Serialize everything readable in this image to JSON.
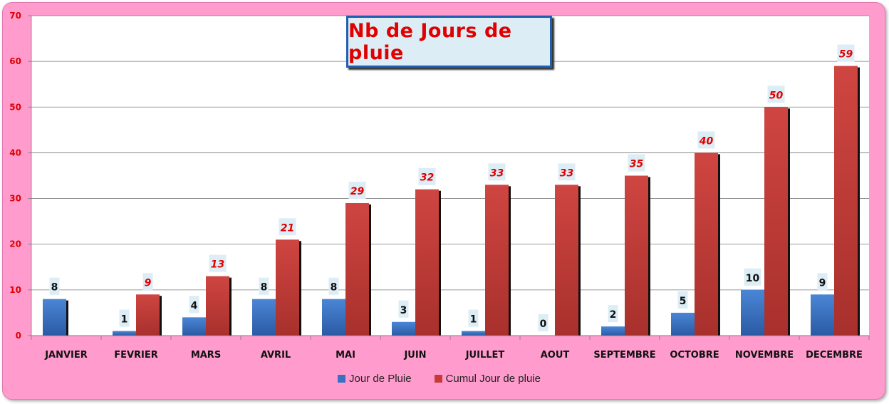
{
  "chart_data": {
    "type": "bar",
    "title": "Nb de Jours de pluie",
    "categories": [
      "JANVIER",
      "FEVRIER",
      "MARS",
      "AVRIL",
      "MAI",
      "JUIN",
      "JUILLET",
      "AOUT",
      "SEPTEMBRE",
      "OCTOBRE",
      "NOVEMBRE",
      "DECEMBRE"
    ],
    "series": [
      {
        "name": "Jour de Pluie",
        "color": "#3a70c0",
        "values": [
          8,
          1,
          4,
          8,
          8,
          3,
          1,
          0,
          2,
          5,
          10,
          9
        ]
      },
      {
        "name": "Cumul Jour de pluie",
        "color": "#c43c38",
        "values": [
          null,
          9,
          13,
          21,
          29,
          32,
          33,
          33,
          35,
          40,
          50,
          59
        ]
      }
    ],
    "ylim": [
      0,
      70
    ],
    "yticks": [
      0,
      10,
      20,
      30,
      40,
      50,
      60,
      70
    ],
    "grid": true,
    "legend": "bottom",
    "colors": {
      "background": "#ff9ccd",
      "plot": "#ffffff",
      "axis_text": "#e00000",
      "label_bg": "#dcedf5",
      "cumul_label": "#e00000"
    }
  }
}
